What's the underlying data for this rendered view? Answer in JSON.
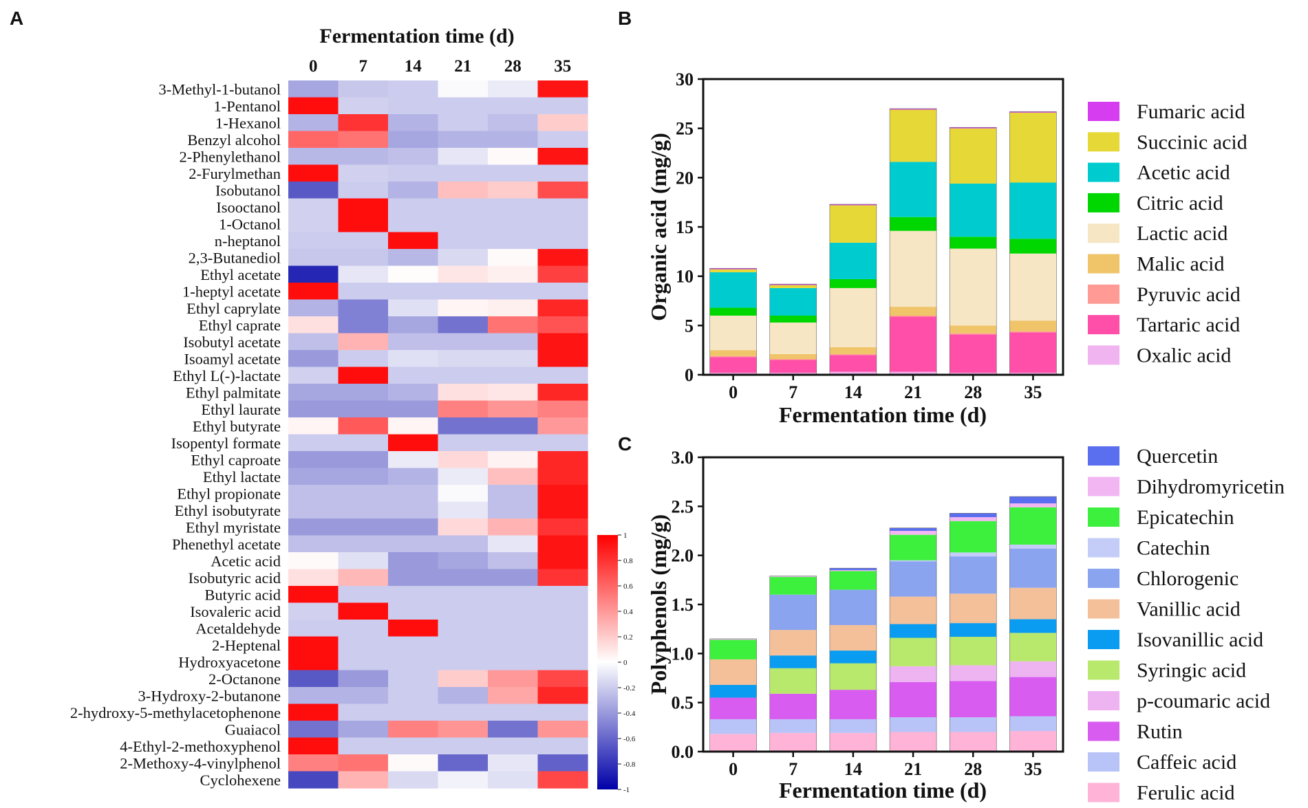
{
  "panels": {
    "a": "A",
    "b": "B",
    "c": "C"
  },
  "chart_data": [
    {
      "type": "heatmap",
      "title": "Fermentation time (d)",
      "columns": [
        "0",
        "7",
        "14",
        "21",
        "28",
        "35"
      ],
      "rows": [
        "3-Methyl-1-butanol",
        "1-Pentanol",
        "1-Hexanol",
        "Benzyl alcohol",
        "2-Phenylethanol",
        "2-Furylmethan",
        "Isobutanol",
        "Isooctanol",
        "1-Octanol",
        "n-heptanol",
        "2,3-Butanediol",
        "Ethyl acetate",
        "1-heptyl acetate",
        "Ethyl caprylate",
        "Ethyl caprate",
        "Isobutyl acetate",
        "Isoamyl acetate",
        "Ethyl L(-)-lactate",
        "Ethyl palmitate",
        "Ethyl laurate",
        "Ethyl butyrate",
        "Isopentyl formate",
        "Ethyl caproate",
        "Ethyl lactate",
        "Ethyl propionate",
        "Ethyl isobutyrate",
        "Ethyl myristate",
        "Phenethyl acetate",
        "Acetic acid",
        "Isobutyric acid",
        "Butyric acid",
        "Isovaleric acid",
        "Acetaldehyde",
        "2-Heptenal",
        "Hydroxyacetone",
        "2-Octanone",
        "3-Hydroxy-2-butanone",
        "2-hydroxy-5-methylacetophenone",
        "Guaiacol",
        "4-Ethyl-2-methoxyphenol",
        "2-Methoxy-4-vinylphenol",
        "Cyclohexene"
      ],
      "values": [
        [
          -0.35,
          -0.22,
          -0.2,
          -0.02,
          -0.08,
          0.92
        ],
        [
          0.95,
          -0.18,
          -0.2,
          -0.2,
          -0.2,
          -0.2
        ],
        [
          -0.3,
          0.8,
          -0.3,
          -0.2,
          -0.25,
          0.2
        ],
        [
          0.6,
          0.55,
          -0.35,
          -0.3,
          -0.3,
          -0.2
        ],
        [
          -0.28,
          -0.28,
          -0.25,
          -0.1,
          0.02,
          0.92
        ],
        [
          0.95,
          -0.18,
          -0.2,
          -0.2,
          -0.2,
          -0.2
        ],
        [
          -0.65,
          -0.2,
          -0.3,
          0.25,
          0.2,
          0.7
        ],
        [
          -0.18,
          0.95,
          -0.2,
          -0.2,
          -0.2,
          -0.2
        ],
        [
          -0.18,
          0.95,
          -0.2,
          -0.2,
          -0.2,
          -0.2
        ],
        [
          -0.2,
          -0.2,
          0.95,
          -0.2,
          -0.2,
          -0.2
        ],
        [
          -0.22,
          -0.22,
          -0.28,
          -0.15,
          0.02,
          0.92
        ],
        [
          -0.85,
          -0.1,
          0.01,
          0.1,
          0.06,
          0.75
        ],
        [
          0.95,
          -0.2,
          -0.2,
          -0.2,
          -0.2,
          -0.2
        ],
        [
          -0.3,
          -0.5,
          -0.12,
          0.04,
          0.06,
          0.85
        ],
        [
          0.12,
          -0.5,
          -0.35,
          -0.55,
          0.55,
          0.68
        ],
        [
          -0.25,
          0.3,
          -0.25,
          -0.25,
          -0.25,
          0.92
        ],
        [
          -0.4,
          -0.2,
          -0.12,
          -0.15,
          -0.15,
          0.92
        ],
        [
          -0.18,
          0.95,
          -0.2,
          -0.2,
          -0.2,
          -0.2
        ],
        [
          -0.35,
          -0.35,
          -0.3,
          0.12,
          0.1,
          0.85
        ],
        [
          -0.4,
          -0.4,
          -0.4,
          0.5,
          0.42,
          0.5
        ],
        [
          0.04,
          0.65,
          0.04,
          -0.55,
          -0.55,
          0.4
        ],
        [
          -0.2,
          -0.2,
          0.95,
          -0.2,
          -0.2,
          -0.2
        ],
        [
          -0.4,
          -0.4,
          -0.08,
          0.15,
          0.05,
          0.85
        ],
        [
          -0.35,
          -0.35,
          -0.3,
          -0.08,
          0.25,
          0.85
        ],
        [
          -0.25,
          -0.25,
          -0.25,
          -0.02,
          -0.25,
          0.92
        ],
        [
          -0.25,
          -0.25,
          -0.25,
          -0.1,
          -0.25,
          0.92
        ],
        [
          -0.4,
          -0.4,
          -0.4,
          0.15,
          0.3,
          0.8
        ],
        [
          -0.25,
          -0.25,
          -0.25,
          -0.25,
          -0.1,
          0.92
        ],
        [
          0.02,
          -0.12,
          -0.4,
          -0.35,
          -0.25,
          0.92
        ],
        [
          0.12,
          0.28,
          -0.4,
          -0.4,
          -0.4,
          0.8
        ],
        [
          0.95,
          -0.2,
          -0.2,
          -0.2,
          -0.2,
          -0.2
        ],
        [
          -0.18,
          0.95,
          -0.2,
          -0.2,
          -0.2,
          -0.2
        ],
        [
          -0.2,
          -0.2,
          0.95,
          -0.2,
          -0.2,
          -0.2
        ],
        [
          0.95,
          -0.2,
          -0.2,
          -0.2,
          -0.2,
          -0.2
        ],
        [
          0.95,
          -0.2,
          -0.2,
          -0.2,
          -0.2,
          -0.2
        ],
        [
          -0.65,
          -0.4,
          -0.2,
          0.2,
          0.4,
          0.72
        ],
        [
          -0.3,
          -0.3,
          -0.2,
          -0.3,
          0.35,
          0.85
        ],
        [
          0.95,
          -0.2,
          -0.2,
          -0.2,
          -0.2,
          -0.2
        ],
        [
          -0.55,
          -0.35,
          0.5,
          0.42,
          -0.55,
          0.42
        ],
        [
          0.95,
          -0.2,
          -0.2,
          -0.2,
          -0.2,
          -0.2
        ],
        [
          0.5,
          0.55,
          0.02,
          -0.6,
          -0.1,
          -0.62
        ],
        [
          -0.72,
          0.3,
          -0.15,
          -0.05,
          -0.12,
          0.72
        ]
      ],
      "colorbar": {
        "range": [
          -1,
          1
        ],
        "ticks": [
          "1",
          "0.8",
          "0.6",
          "0.4",
          "0.2",
          "0",
          "-0.2",
          "-0.4",
          "-0.6",
          "-0.8",
          "-1"
        ],
        "colors": {
          "neg": "#0000a8",
          "mid": "#ffffff",
          "pos": "#ff0000"
        }
      }
    },
    {
      "type": "bar",
      "stacked": true,
      "xlabel": "Fermentation time (d)",
      "ylabel": "Organic acid (mg/g)",
      "categories": [
        "0",
        "7",
        "14",
        "21",
        "28",
        "35"
      ],
      "ylim": [
        0,
        30
      ],
      "yticks": [
        0,
        5,
        10,
        15,
        20,
        25,
        30
      ],
      "series": [
        {
          "name": "Oxalic acid",
          "color": "#f0b4f0",
          "values": [
            0.2,
            0.2,
            0.3,
            0.3,
            0.2,
            0.2
          ]
        },
        {
          "name": "Tartaric acid",
          "color": "#ff4fa8",
          "values": [
            1.6,
            1.3,
            1.7,
            5.6,
            3.9,
            4.1
          ]
        },
        {
          "name": "Pyruvic acid",
          "color": "#ff9a94",
          "values": [
            0.1,
            0.1,
            0.1,
            0.1,
            0.1,
            0.1
          ]
        },
        {
          "name": "Malic acid",
          "color": "#f0c469",
          "values": [
            0.6,
            0.5,
            0.7,
            0.9,
            0.8,
            1.1
          ]
        },
        {
          "name": "Lactic acid",
          "color": "#f7e6c4",
          "values": [
            3.5,
            3.2,
            6.0,
            7.7,
            7.8,
            6.8
          ]
        },
        {
          "name": "Citric acid",
          "color": "#00d600",
          "values": [
            0.8,
            0.7,
            0.9,
            1.4,
            1.2,
            1.5
          ]
        },
        {
          "name": "Acetic acid",
          "color": "#00ccd0",
          "values": [
            3.6,
            2.8,
            3.7,
            5.6,
            5.4,
            5.7
          ]
        },
        {
          "name": "Succinic acid",
          "color": "#e6d836",
          "values": [
            0.3,
            0.3,
            3.8,
            5.3,
            5.6,
            7.1
          ]
        },
        {
          "name": "Fumaric acid",
          "color": "#d63cf0",
          "values": [
            0.1,
            0.1,
            0.1,
            0.1,
            0.1,
            0.1
          ]
        }
      ]
    },
    {
      "type": "bar",
      "stacked": true,
      "xlabel": "Fermentation time (d)",
      "ylabel": "Polyphenols (mg/g)",
      "categories": [
        "0",
        "7",
        "14",
        "21",
        "28",
        "35"
      ],
      "ylim": [
        0,
        3
      ],
      "yticks": [
        "0.0",
        "0.5",
        "1.0",
        "1.5",
        "2.0",
        "2.5",
        "3.0"
      ],
      "series": [
        {
          "name": "Ferulic acid",
          "color": "#ffb3d6",
          "values": [
            0.18,
            0.19,
            0.19,
            0.2,
            0.2,
            0.21
          ]
        },
        {
          "name": "Caffeic acid",
          "color": "#b8c4f8",
          "values": [
            0.15,
            0.14,
            0.14,
            0.15,
            0.15,
            0.15
          ]
        },
        {
          "name": "Rutin",
          "color": "#d85cf0",
          "values": [
            0.22,
            0.26,
            0.3,
            0.36,
            0.37,
            0.4
          ]
        },
        {
          "name": "p-coumaric acid",
          "color": "#eeb4f2",
          "values": [
            0.0,
            0.0,
            0.0,
            0.16,
            0.16,
            0.16
          ]
        },
        {
          "name": "Syringic acid",
          "color": "#b8e86c",
          "values": [
            0.0,
            0.26,
            0.27,
            0.29,
            0.29,
            0.29
          ]
        },
        {
          "name": "Isovanillic acid",
          "color": "#0a9cf0",
          "values": [
            0.13,
            0.13,
            0.13,
            0.14,
            0.14,
            0.14
          ]
        },
        {
          "name": "Vanillic acid",
          "color": "#f4c09a",
          "values": [
            0.26,
            0.26,
            0.26,
            0.28,
            0.3,
            0.32
          ]
        },
        {
          "name": "Chlorogenic",
          "color": "#8aa4f0",
          "values": [
            0.0,
            0.36,
            0.36,
            0.36,
            0.38,
            0.4
          ]
        },
        {
          "name": "Catechin",
          "color": "#c4cdf8",
          "values": [
            0.0,
            0.0,
            0.0,
            0.01,
            0.04,
            0.04
          ]
        },
        {
          "name": "Epicatechin",
          "color": "#3ef03e",
          "values": [
            0.2,
            0.18,
            0.19,
            0.26,
            0.32,
            0.38
          ]
        },
        {
          "name": "Dihydromyricetin",
          "color": "#f2b6f2",
          "values": [
            0.01,
            0.01,
            0.01,
            0.04,
            0.04,
            0.04
          ]
        },
        {
          "name": "Quercetin",
          "color": "#5a6ef0",
          "values": [
            0.0,
            0.0,
            0.02,
            0.03,
            0.04,
            0.07
          ]
        }
      ]
    }
  ]
}
